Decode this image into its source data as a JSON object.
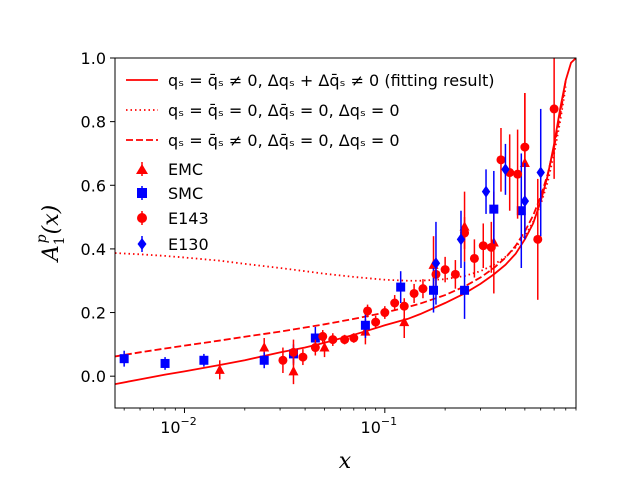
{
  "chart_data": {
    "type": "scatter",
    "title": "",
    "xlabel": "x",
    "ylabel": "A_1^p(x)",
    "ylabel_main": "A",
    "ylabel_sup": "p",
    "ylabel_sub": "1",
    "ylabel_paren": "(x)",
    "xscale": "log",
    "xlim": [
      0.0045,
      0.9
    ],
    "ylim": [
      -0.1,
      1.0
    ],
    "grid": false,
    "legend_placement": "top-left",
    "x_ticks": [
      {
        "value": 0.01,
        "base": "10",
        "exp": "−2"
      },
      {
        "value": 0.1,
        "base": "10",
        "exp": "−1"
      }
    ],
    "y_ticks": [
      {
        "value": 0.0,
        "label": "0.0"
      },
      {
        "value": 0.2,
        "label": "0.2"
      },
      {
        "value": 0.4,
        "label": "0.4"
      },
      {
        "value": 0.6,
        "label": "0.6"
      },
      {
        "value": 0.8,
        "label": "0.8"
      },
      {
        "value": 1.0,
        "label": "1.0"
      }
    ],
    "curves": [
      {
        "name": "q_s = q̄_s ≠ 0, Δq_s + Δq̄_s ≠ 0 (fitting result)",
        "legend_label": "qₛ = q̄ₛ ≠ 0, Δqₛ + Δq̄ₛ ≠ 0 (fitting result)",
        "style": "solid",
        "color": "#ff0000",
        "x": [
          0.0045,
          0.006,
          0.008,
          0.01,
          0.015,
          0.02,
          0.03,
          0.04,
          0.05,
          0.07,
          0.1,
          0.13,
          0.15,
          0.2,
          0.25,
          0.3,
          0.35,
          0.4,
          0.45,
          0.5,
          0.55,
          0.6,
          0.65,
          0.7,
          0.75,
          0.8,
          0.85,
          0.9
        ],
        "y": [
          -0.025,
          -0.01,
          0.005,
          0.015,
          0.035,
          0.05,
          0.075,
          0.09,
          0.105,
          0.13,
          0.16,
          0.18,
          0.195,
          0.23,
          0.26,
          0.29,
          0.32,
          0.35,
          0.385,
          0.43,
          0.48,
          0.55,
          0.63,
          0.73,
          0.84,
          0.93,
          0.985,
          1.0
        ]
      },
      {
        "name": "q_s = q̄_s = 0, Δq̄_s = 0, Δq_s = 0",
        "legend_label": "qₛ = q̄ₛ = 0, Δq̄ₛ = 0, Δqₛ = 0",
        "style": "dotted",
        "color": "#ff0000",
        "x": [
          0.0045,
          0.006,
          0.008,
          0.01,
          0.015,
          0.02,
          0.03,
          0.04,
          0.05,
          0.07,
          0.1,
          0.13,
          0.15,
          0.2,
          0.25,
          0.3,
          0.35,
          0.4,
          0.45,
          0.5,
          0.55,
          0.6,
          0.65,
          0.7,
          0.75,
          0.8
        ],
        "y": [
          0.387,
          0.383,
          0.378,
          0.373,
          0.363,
          0.353,
          0.34,
          0.33,
          0.322,
          0.312,
          0.303,
          0.3,
          0.3,
          0.305,
          0.315,
          0.33,
          0.35,
          0.375,
          0.405,
          0.44,
          0.485,
          0.54,
          0.61,
          0.7,
          0.8,
          0.91
        ]
      },
      {
        "name": "q_s = q̄_s ≠ 0, Δq̄_s = 0, Δq_s = 0",
        "legend_label": "qₛ = q̄ₛ ≠ 0, Δq̄ₛ = 0, Δqₛ = 0",
        "style": "dashed",
        "color": "#ff0000",
        "x": [
          0.0045,
          0.006,
          0.008,
          0.01,
          0.015,
          0.02,
          0.03,
          0.04,
          0.05,
          0.07,
          0.1,
          0.13,
          0.15,
          0.2,
          0.25,
          0.3,
          0.35,
          0.4,
          0.45,
          0.5,
          0.55,
          0.6,
          0.65,
          0.7,
          0.75,
          0.8
        ],
        "y": [
          0.062,
          0.075,
          0.087,
          0.096,
          0.112,
          0.124,
          0.14,
          0.153,
          0.163,
          0.18,
          0.2,
          0.217,
          0.228,
          0.255,
          0.282,
          0.31,
          0.34,
          0.372,
          0.41,
          0.455,
          0.505,
          0.565,
          0.635,
          0.72,
          0.82,
          0.93
        ]
      }
    ],
    "series": [
      {
        "name": "EMC",
        "marker": "triangle",
        "color": "#ff0000",
        "points": [
          {
            "x": 0.015,
            "y": 0.02,
            "err": 0.03
          },
          {
            "x": 0.025,
            "y": 0.09,
            "err": 0.03
          },
          {
            "x": 0.035,
            "y": 0.015,
            "err": 0.04
          },
          {
            "x": 0.05,
            "y": 0.09,
            "err": 0.03
          },
          {
            "x": 0.08,
            "y": 0.14,
            "err": 0.04
          },
          {
            "x": 0.125,
            "y": 0.17,
            "err": 0.05
          },
          {
            "x": 0.175,
            "y": 0.35,
            "err": 0.09
          },
          {
            "x": 0.25,
            "y": 0.47,
            "err": 0.11
          },
          {
            "x": 0.35,
            "y": 0.42,
            "err": 0.16
          },
          {
            "x": 0.5,
            "y": 0.67,
            "err": 0.22
          }
        ]
      },
      {
        "name": "SMC",
        "marker": "square",
        "color": "#0000ff",
        "points": [
          {
            "x": 0.005,
            "y": 0.055,
            "err": 0.025
          },
          {
            "x": 0.008,
            "y": 0.04,
            "err": 0.02
          },
          {
            "x": 0.0125,
            "y": 0.05,
            "err": 0.02
          },
          {
            "x": 0.025,
            "y": 0.05,
            "err": 0.025
          },
          {
            "x": 0.035,
            "y": 0.07,
            "err": 0.03
          },
          {
            "x": 0.045,
            "y": 0.12,
            "err": 0.035
          },
          {
            "x": 0.08,
            "y": 0.16,
            "err": 0.04
          },
          {
            "x": 0.12,
            "y": 0.28,
            "err": 0.05
          },
          {
            "x": 0.175,
            "y": 0.27,
            "err": 0.07
          },
          {
            "x": 0.25,
            "y": 0.27,
            "err": 0.09
          },
          {
            "x": 0.35,
            "y": 0.525,
            "err": 0.12
          },
          {
            "x": 0.48,
            "y": 0.52,
            "err": 0.18
          }
        ]
      },
      {
        "name": "E143",
        "marker": "circle",
        "color": "#ff0000",
        "points": [
          {
            "x": 0.031,
            "y": 0.05,
            "err": 0.04
          },
          {
            "x": 0.035,
            "y": 0.075,
            "err": 0.04
          },
          {
            "x": 0.039,
            "y": 0.06,
            "err": 0.025
          },
          {
            "x": 0.045,
            "y": 0.09,
            "err": 0.025
          },
          {
            "x": 0.049,
            "y": 0.125,
            "err": 0.02
          },
          {
            "x": 0.055,
            "y": 0.115,
            "err": 0.02
          },
          {
            "x": 0.063,
            "y": 0.115,
            "err": 0.015
          },
          {
            "x": 0.07,
            "y": 0.12,
            "err": 0.015
          },
          {
            "x": 0.082,
            "y": 0.205,
            "err": 0.02
          },
          {
            "x": 0.09,
            "y": 0.17,
            "err": 0.02
          },
          {
            "x": 0.1,
            "y": 0.2,
            "err": 0.02
          },
          {
            "x": 0.112,
            "y": 0.23,
            "err": 0.025
          },
          {
            "x": 0.125,
            "y": 0.22,
            "err": 0.025
          },
          {
            "x": 0.14,
            "y": 0.26,
            "err": 0.03
          },
          {
            "x": 0.155,
            "y": 0.275,
            "err": 0.03
          },
          {
            "x": 0.18,
            "y": 0.32,
            "err": 0.035
          },
          {
            "x": 0.2,
            "y": 0.335,
            "err": 0.04
          },
          {
            "x": 0.225,
            "y": 0.32,
            "err": 0.045
          },
          {
            "x": 0.25,
            "y": 0.45,
            "err": 0.05
          },
          {
            "x": 0.28,
            "y": 0.37,
            "err": 0.06
          },
          {
            "x": 0.31,
            "y": 0.41,
            "err": 0.07
          },
          {
            "x": 0.34,
            "y": 0.405,
            "err": 0.08
          },
          {
            "x": 0.38,
            "y": 0.68,
            "err": 0.1
          },
          {
            "x": 0.42,
            "y": 0.64,
            "err": 0.12
          },
          {
            "x": 0.46,
            "y": 0.635,
            "err": 0.14
          },
          {
            "x": 0.5,
            "y": 0.72,
            "err": 0.17
          },
          {
            "x": 0.58,
            "y": 0.43,
            "err": 0.19
          },
          {
            "x": 0.7,
            "y": 0.84,
            "err": 0.22
          }
        ]
      },
      {
        "name": "E130",
        "marker": "diamond",
        "color": "#0000ff",
        "points": [
          {
            "x": 0.18,
            "y": 0.355,
            "err": 0.13
          },
          {
            "x": 0.24,
            "y": 0.43,
            "err": 0.09
          },
          {
            "x": 0.32,
            "y": 0.58,
            "err": 0.07
          },
          {
            "x": 0.4,
            "y": 0.65,
            "err": 0.08
          },
          {
            "x": 0.5,
            "y": 0.55,
            "err": 0.12
          },
          {
            "x": 0.6,
            "y": 0.64,
            "err": 0.2
          }
        ]
      }
    ]
  }
}
